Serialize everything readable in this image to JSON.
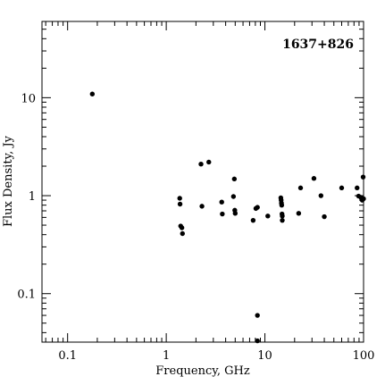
{
  "chart_data": {
    "type": "scatter",
    "title": "",
    "annotation": "1637+826",
    "xlabel": "Frequency, GHz",
    "ylabel": "Flux Density, Jy",
    "xscale": "log",
    "yscale": "log",
    "xlim": [
      0.055,
      100
    ],
    "ylim": [
      0.032,
      60
    ],
    "x_tick_labels": [
      {
        "value": 0.1,
        "label": "0.1"
      },
      {
        "value": 1,
        "label": "1"
      },
      {
        "value": 10,
        "label": "10"
      },
      {
        "value": 100,
        "label": "100"
      }
    ],
    "y_tick_labels": [
      {
        "value": 0.1,
        "label": "0.1"
      },
      {
        "value": 1,
        "label": "1"
      },
      {
        "value": 10,
        "label": "10"
      }
    ],
    "grid": false,
    "legend": "none",
    "marker_color": "#000000",
    "points": [
      {
        "x": 0.178,
        "y": 10.9
      },
      {
        "x": 1.37,
        "y": 0.94
      },
      {
        "x": 1.38,
        "y": 0.82
      },
      {
        "x": 1.4,
        "y": 0.49
      },
      {
        "x": 1.44,
        "y": 0.47
      },
      {
        "x": 1.46,
        "y": 0.41
      },
      {
        "x": 2.25,
        "y": 2.1
      },
      {
        "x": 2.3,
        "y": 0.78
      },
      {
        "x": 2.7,
        "y": 2.2
      },
      {
        "x": 3.65,
        "y": 0.86
      },
      {
        "x": 3.7,
        "y": 0.65
      },
      {
        "x": 4.8,
        "y": 0.98
      },
      {
        "x": 4.9,
        "y": 1.48
      },
      {
        "x": 4.95,
        "y": 0.71
      },
      {
        "x": 5.0,
        "y": 0.66
      },
      {
        "x": 7.6,
        "y": 0.56
      },
      {
        "x": 8.1,
        "y": 0.74
      },
      {
        "x": 8.4,
        "y": 0.76
      },
      {
        "x": 8.4,
        "y": 0.06
      },
      {
        "x": 8.4,
        "y": 0.033
      },
      {
        "x": 10.7,
        "y": 0.62
      },
      {
        "x": 14.5,
        "y": 0.95
      },
      {
        "x": 14.6,
        "y": 0.9
      },
      {
        "x": 14.7,
        "y": 0.84
      },
      {
        "x": 14.8,
        "y": 0.8
      },
      {
        "x": 14.9,
        "y": 0.65
      },
      {
        "x": 15.0,
        "y": 0.62
      },
      {
        "x": 15.0,
        "y": 0.56
      },
      {
        "x": 22.0,
        "y": 0.66
      },
      {
        "x": 23.0,
        "y": 1.2
      },
      {
        "x": 31.4,
        "y": 1.5
      },
      {
        "x": 37.0,
        "y": 1.0
      },
      {
        "x": 40.0,
        "y": 0.61
      },
      {
        "x": 60.0,
        "y": 1.2
      },
      {
        "x": 86.0,
        "y": 1.2
      },
      {
        "x": 89.0,
        "y": 0.99
      },
      {
        "x": 94.0,
        "y": 0.96
      },
      {
        "x": 97.0,
        "y": 0.9
      },
      {
        "x": 99.0,
        "y": 1.55
      },
      {
        "x": 100.0,
        "y": 0.93
      }
    ]
  }
}
